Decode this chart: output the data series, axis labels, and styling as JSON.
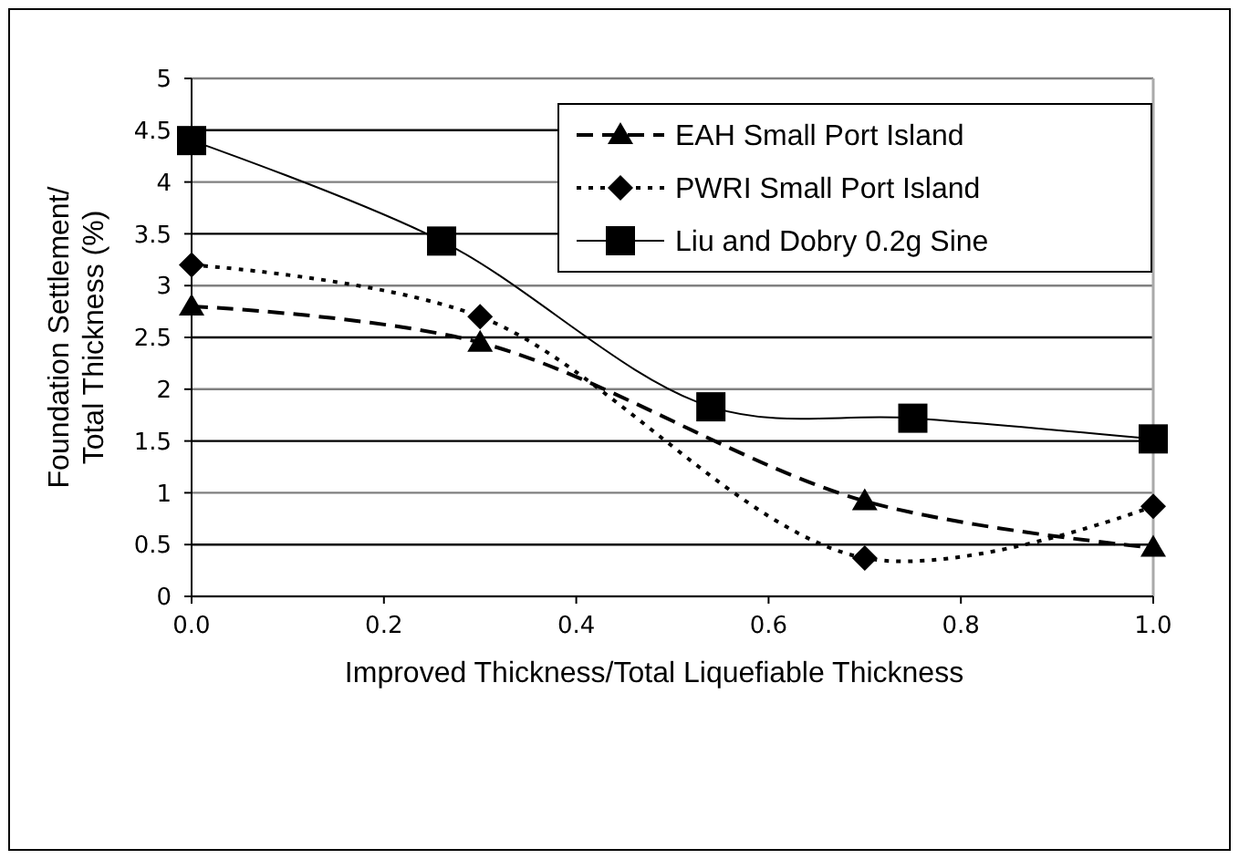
{
  "chart_data": {
    "type": "line",
    "xlabel": "Improved Thickness/Total Liquefiable Thickness",
    "ylabel": "Foundation Settlement/\nTotal Thickness (%)",
    "xlim": [
      0,
      1
    ],
    "xticks": [
      {
        "value": 0,
        "label": "0.0"
      },
      {
        "value": 0.2,
        "label": "0.2"
      },
      {
        "value": 0.4,
        "label": "0.4"
      },
      {
        "value": 0.6,
        "label": "0.6"
      },
      {
        "value": 0.8,
        "label": "0.8"
      },
      {
        "value": 1,
        "label": "1.0"
      }
    ],
    "ylim": [
      0,
      5
    ],
    "yticks": [
      0,
      0.5,
      1,
      1.5,
      2,
      2.5,
      3,
      3.5,
      4,
      4.5,
      5
    ],
    "grid": "y",
    "legend": "top right",
    "series": [
      {
        "name": "EAH Small Port Island",
        "color": "#000000",
        "x": [
          0,
          0.3,
          0.7,
          1
        ],
        "values": [
          2.8,
          2.45,
          0.92,
          0.47
        ],
        "marker": "triangle",
        "line_style": "dashed"
      },
      {
        "name": "PWRI Small Port Island",
        "color": "#000000",
        "x": [
          0,
          0.3,
          0.7,
          1
        ],
        "values": [
          3.2,
          2.7,
          0.37,
          0.87
        ],
        "marker": "diamond",
        "line_style": "dotted"
      },
      {
        "name": "Liu and Dobry 0.2g Sine",
        "color": "#000000",
        "x": [
          0,
          0.26,
          0.54,
          0.75,
          1
        ],
        "values": [
          4.4,
          3.43,
          1.83,
          1.72,
          1.52
        ],
        "marker": "square",
        "line_style": "solid"
      }
    ]
  }
}
